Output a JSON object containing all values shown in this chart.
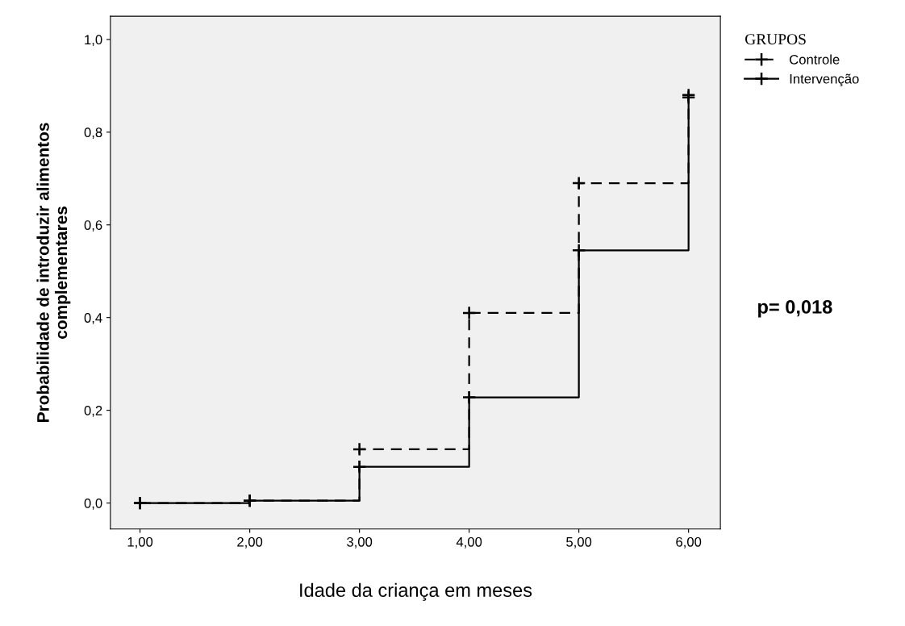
{
  "chart_data": {
    "type": "step",
    "xlabel": "Idade da criança em meses",
    "ylabel": "Probabilidade de introduzir alimentos\ncomplementares",
    "legend_title": "GRUPOS",
    "x": [
      1,
      2,
      3,
      4,
      5,
      6
    ],
    "series": [
      {
        "name": "Controle",
        "color": "#000000",
        "line_style": "dashed",
        "values": [
          0,
          0.005,
          0.116,
          0.41,
          0.69,
          0.88
        ]
      },
      {
        "name": "Intervenção",
        "color": "#000000",
        "line_style": "solid",
        "values": [
          0,
          0.005,
          0.078,
          0.228,
          0.545,
          0.875
        ]
      }
    ],
    "marker": "cross",
    "xlim": [
      0.73,
      6.29
    ],
    "ylim": [
      -0.056,
      1.05
    ],
    "xticks": [
      {
        "value": 1,
        "label": "1,00"
      },
      {
        "value": 2,
        "label": "2,00"
      },
      {
        "value": 3,
        "label": "3,00"
      },
      {
        "value": 4,
        "label": "4,00"
      },
      {
        "value": 5,
        "label": "5,00"
      },
      {
        "value": 6,
        "label": "6,00"
      }
    ],
    "yticks": [
      {
        "value": 0,
        "label": "0,0"
      },
      {
        "value": 0.2,
        "label": "0,2"
      },
      {
        "value": 0.4,
        "label": "0,4"
      },
      {
        "value": 0.6,
        "label": "0,6"
      },
      {
        "value": 0.8,
        "label": "0,8"
      },
      {
        "value": 1,
        "label": "1,0"
      }
    ],
    "legend": "top right",
    "annotations": [
      "p= 0,018"
    ]
  }
}
